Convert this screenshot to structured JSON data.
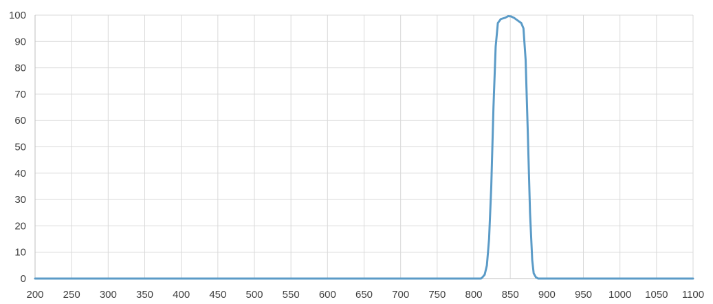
{
  "chart_data": {
    "type": "line",
    "title": "",
    "xlabel": "",
    "ylabel": "",
    "xlim": [
      200,
      1100
    ],
    "ylim": [
      0,
      100
    ],
    "x_ticks": [
      200,
      250,
      300,
      350,
      400,
      450,
      500,
      550,
      600,
      650,
      700,
      750,
      800,
      850,
      900,
      950,
      1000,
      1050,
      1100
    ],
    "y_ticks": [
      0,
      10,
      20,
      30,
      40,
      50,
      60,
      70,
      80,
      90,
      100
    ],
    "grid": true,
    "legend": "none",
    "series": [
      {
        "color": "#5b9bc7",
        "points": [
          [
            200,
            0
          ],
          [
            810,
            0
          ],
          [
            812,
            0.5
          ],
          [
            815,
            1.5
          ],
          [
            818,
            5
          ],
          [
            821,
            15
          ],
          [
            824,
            35
          ],
          [
            827,
            65
          ],
          [
            830,
            88
          ],
          [
            833,
            97
          ],
          [
            837,
            98.5
          ],
          [
            843,
            99
          ],
          [
            847,
            99.6
          ],
          [
            851,
            99.5
          ],
          [
            855,
            99
          ],
          [
            860,
            98
          ],
          [
            865,
            97
          ],
          [
            868,
            95
          ],
          [
            871,
            83
          ],
          [
            874,
            55
          ],
          [
            877,
            25
          ],
          [
            880,
            7
          ],
          [
            882,
            2
          ],
          [
            885,
            0.5
          ],
          [
            888,
            0
          ],
          [
            1100,
            0
          ]
        ]
      }
    ]
  }
}
